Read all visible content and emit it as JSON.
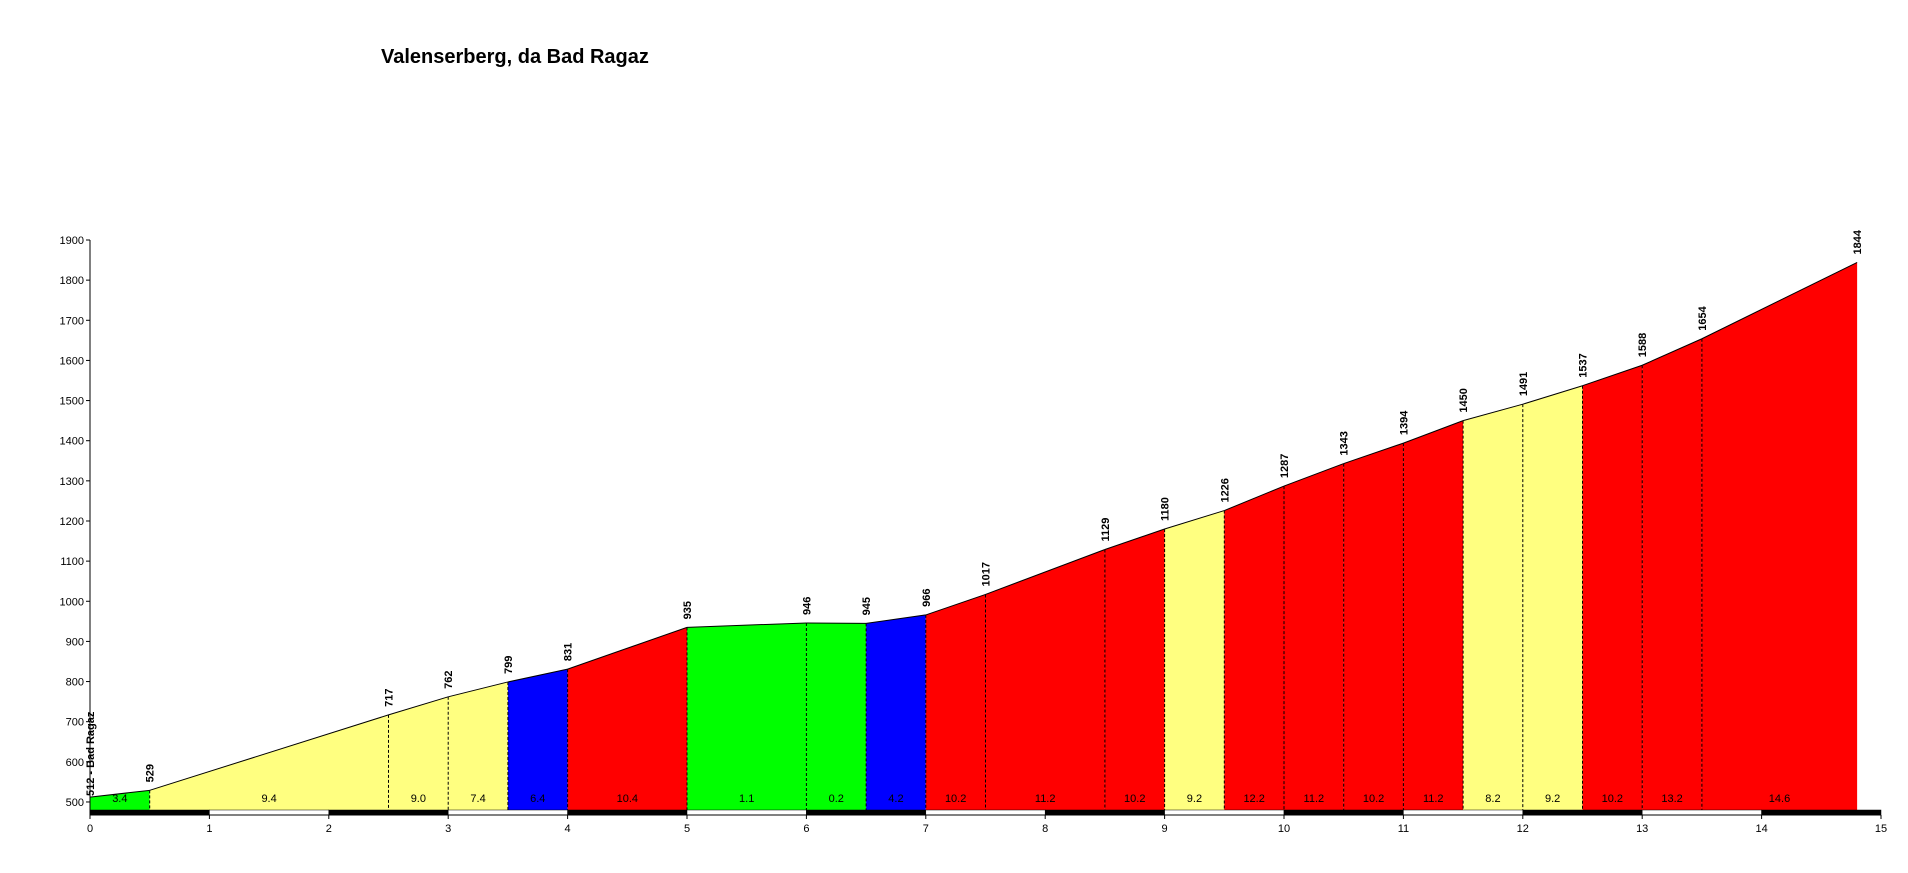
{
  "chart_data": {
    "type": "profile",
    "title": "Valenserberg, da Bad Ragaz",
    "x": [
      0,
      0.5,
      2.5,
      3.0,
      3.5,
      4.0,
      5.0,
      6.0,
      6.5,
      7.0,
      7.5,
      8.5,
      9.0,
      9.5,
      10.0,
      10.5,
      11.0,
      11.5,
      12.0,
      12.5,
      13.0,
      13.5,
      14.8
    ],
    "values": [
      512,
      529,
      717,
      762,
      799,
      831,
      935,
      946,
      945,
      966,
      1017,
      1129,
      1180,
      1226,
      1287,
      1343,
      1394,
      1450,
      1491,
      1537,
      1588,
      1654,
      1844
    ],
    "value_labels": [
      "512 - Bad Ragaz",
      "529",
      "717",
      "762",
      "799",
      "831",
      "935",
      "946",
      "945",
      "966",
      "1017",
      "1129",
      "1180",
      "1226",
      "1287",
      "1343",
      "1394",
      "1450",
      "1491",
      "1537",
      "1588",
      "1654",
      "1844"
    ],
    "gradient_labels": [
      "3.4",
      "9.4",
      "9.0",
      "7.4",
      "6.4",
      "10.4",
      "1.1",
      "0.2",
      "4.2",
      "10.2",
      "11.2",
      "10.2",
      "9.2",
      "12.2",
      "11.2",
      "10.2",
      "11.2",
      "8.2",
      "9.2",
      "10.2",
      "13.2",
      "14.6"
    ],
    "colors": [
      "#00ff00",
      "#ffff80",
      "#ffff80",
      "#ffff80",
      "#0000ff",
      "#ff0000",
      "#00ff00",
      "#00ff00",
      "#0000ff",
      "#ff0000",
      "#ff0000",
      "#ff0000",
      "#ffff80",
      "#ff0000",
      "#ff0000",
      "#ff0000",
      "#ff0000",
      "#ffff80",
      "#ffff80",
      "#ff0000",
      "#ff0000",
      "#ff0000"
    ],
    "xlim": [
      0,
      15
    ],
    "xticks": [
      0,
      1,
      2,
      3,
      4,
      5,
      6,
      7,
      8,
      9,
      10,
      11,
      12,
      13,
      14,
      15
    ],
    "ylim": [
      480,
      1900
    ],
    "yticks": [
      500,
      600,
      700,
      800,
      900,
      1000,
      1100,
      1200,
      1300,
      1400,
      1500,
      1600,
      1700,
      1800,
      1900
    ]
  }
}
